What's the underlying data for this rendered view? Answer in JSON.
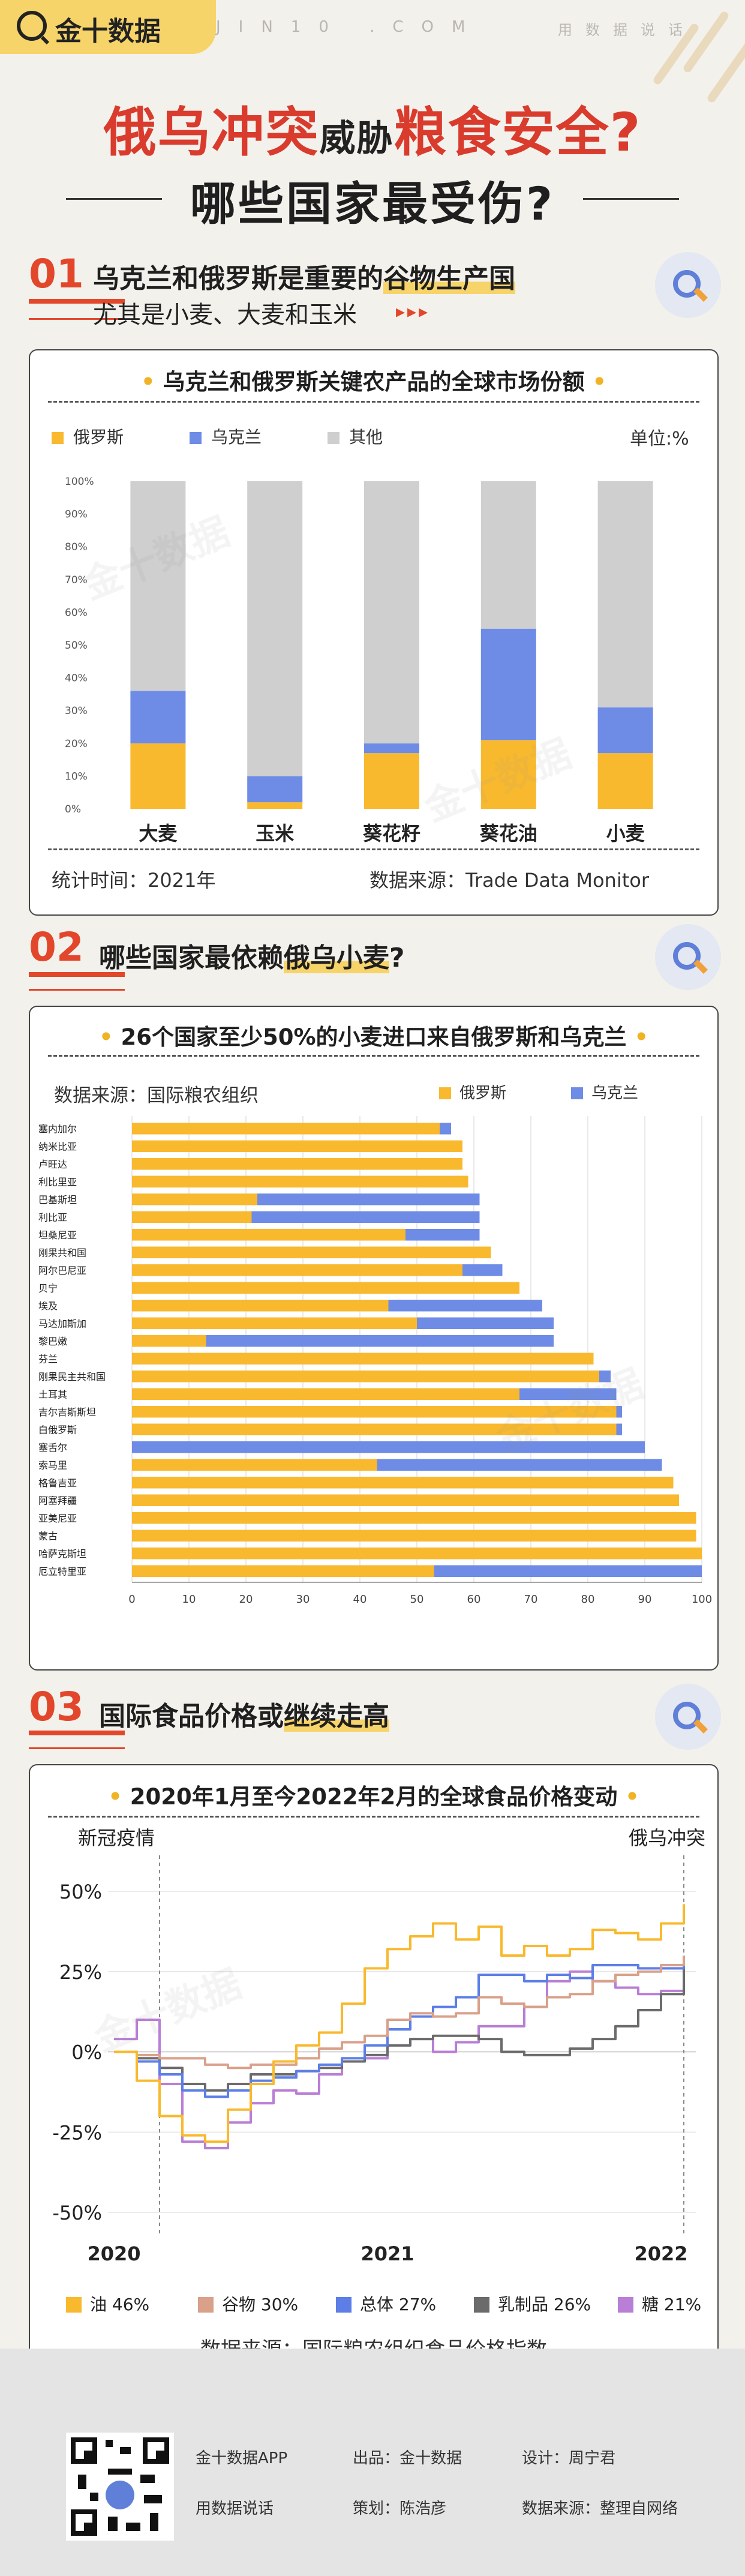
{
  "header": {
    "logo_text": "金十数据",
    "site": "JIN10 .COM",
    "slogan": "用数据说话"
  },
  "title": {
    "part1": "俄乌冲突",
    "part2": "威胁",
    "part3": "粮食安全?",
    "line2": "哪些国家最受伤?"
  },
  "section1": {
    "num": "01",
    "heading_pre": "乌克兰和俄罗斯是重要的",
    "heading_hl": "谷物生产国",
    "sub": "尤其是小麦、大麦和玉米",
    "arrows": "▸▸▸"
  },
  "section2": {
    "num": "02",
    "heading_pre": "哪些国家最依赖",
    "heading_hl": "俄乌小麦",
    "heading_post": "?"
  },
  "section3": {
    "num": "03",
    "heading_pre": "国际食品价格",
    "heading_mid": "或",
    "heading_hl": "继续走高"
  },
  "chart1": {
    "title": "乌克兰和俄罗斯关键农产品的全球市场份额",
    "unit": "单位:%",
    "time_note": "统计时间：2021年",
    "source": "数据来源：Trade Data Monitor"
  },
  "chart2": {
    "title": "26个国家至少50%的小麦进口来自俄罗斯和乌克兰",
    "source": "数据来源：国际粮农组织"
  },
  "chart3": {
    "title": "2020年1月至今2022年2月的全球食品价格变动",
    "annot_left": "新冠疫情",
    "annot_right": "俄乌冲突",
    "source": "数据来源：国际粮农组织食品价格指数"
  },
  "chart_data": [
    {
      "type": "bar",
      "stacked": true,
      "title": "乌克兰和俄罗斯关键农产品的全球市场份额",
      "categories": [
        "大麦",
        "玉米",
        "葵花籽",
        "葵花油",
        "小麦"
      ],
      "series": [
        {
          "name": "俄罗斯",
          "color": "#f9b92e",
          "values": [
            20,
            2,
            17,
            21,
            17
          ]
        },
        {
          "name": "乌克兰",
          "color": "#6e8ce6",
          "values": [
            16,
            8,
            3,
            34,
            14
          ]
        },
        {
          "name": "其他",
          "color": "#cfcfcf",
          "values": [
            64,
            90,
            80,
            45,
            69
          ]
        }
      ],
      "yticks": [
        "0%",
        "10%",
        "20%",
        "30%",
        "40%",
        "50%",
        "60%",
        "70%",
        "80%",
        "90%",
        "100%"
      ],
      "ylim": [
        0,
        100
      ],
      "legend_position": "top-left"
    },
    {
      "type": "bar",
      "orientation": "horizontal",
      "stacked": true,
      "title": "26个国家至少50%的小麦进口来自俄罗斯和乌克兰",
      "categories": [
        "塞内加尔",
        "纳米比亚",
        "卢旺达",
        "利比里亚",
        "巴基斯坦",
        "利比亚",
        "坦桑尼亚",
        "刚果共和国",
        "阿尔巴尼亚",
        "贝宁",
        "埃及",
        "马达加斯加",
        "黎巴嫩",
        "芬兰",
        "刚果民主共和国",
        "土耳其",
        "吉尔吉斯斯坦",
        "白俄罗斯",
        "塞舌尔",
        "索马里",
        "格鲁吉亚",
        "阿塞拜疆",
        "亚美尼亚",
        "蒙古",
        "哈萨克斯坦",
        "厄立特里亚"
      ],
      "series": [
        {
          "name": "俄罗斯",
          "color": "#f9b92e",
          "values": [
            54,
            58,
            58,
            59,
            22,
            21,
            48,
            63,
            58,
            68,
            45,
            50,
            13,
            81,
            82,
            68,
            85,
            85,
            0,
            43,
            95,
            96,
            99,
            99,
            100,
            53
          ]
        },
        {
          "name": "乌克兰",
          "color": "#6e8ce6",
          "values": [
            2,
            0,
            0,
            0,
            39,
            40,
            13,
            0,
            7,
            0,
            27,
            24,
            61,
            0,
            2,
            17,
            1,
            1,
            90,
            50,
            0,
            0,
            0,
            0,
            0,
            47
          ]
        }
      ],
      "xticks": [
        0,
        10,
        20,
        30,
        40,
        50,
        60,
        70,
        80,
        90,
        100
      ],
      "xlim": [
        0,
        100
      ],
      "legend_position": "top-right"
    },
    {
      "type": "line",
      "title": "2020年1月至今2022年2月的全球食品价格变动",
      "x": [
        "2020-01",
        "2020-02",
        "2020-03",
        "2020-04",
        "2020-05",
        "2020-06",
        "2020-07",
        "2020-08",
        "2020-09",
        "2020-10",
        "2020-11",
        "2020-12",
        "2021-01",
        "2021-02",
        "2021-03",
        "2021-04",
        "2021-05",
        "2021-06",
        "2021-07",
        "2021-08",
        "2021-09",
        "2021-10",
        "2021-11",
        "2021-12",
        "2022-01",
        "2022-02"
      ],
      "x_tick_labels": [
        "2020",
        "2021",
        "2022"
      ],
      "yticks": [
        "-50%",
        "-25%",
        "0%",
        "25%",
        "50%"
      ],
      "ylim": [
        -50,
        50
      ],
      "series": [
        {
          "name": "油",
          "label": "油 46%",
          "color": "#f9b92e",
          "values": [
            0,
            -9,
            -20,
            -26,
            -28,
            -18,
            -10,
            -3,
            2,
            6,
            15,
            26,
            32,
            36,
            40,
            35,
            39,
            30,
            33,
            30,
            32,
            38,
            37,
            35,
            40,
            46
          ]
        },
        {
          "name": "谷物",
          "label": "谷物 30%",
          "color": "#d9a08a",
          "values": [
            0,
            -1,
            -2,
            -2,
            -4,
            -5,
            -4,
            -4,
            -2,
            1,
            3,
            5,
            10,
            12,
            11,
            12,
            17,
            15,
            14,
            17,
            18,
            22,
            24,
            25,
            27,
            30
          ]
        },
        {
          "name": "总体",
          "label": "总体 27%",
          "color": "#5c7ee6",
          "values": [
            0,
            -3,
            -7,
            -12,
            -14,
            -12,
            -9,
            -8,
            -6,
            -4,
            -2,
            2,
            7,
            11,
            14,
            17,
            24,
            24,
            22,
            24,
            23,
            27,
            27,
            26,
            26,
            27
          ]
        },
        {
          "name": "乳制品",
          "label": "乳制品 26%",
          "color": "#6b6b6b",
          "values": [
            0,
            -2,
            -5,
            -10,
            -12,
            -10,
            -7,
            -7,
            -6,
            -5,
            -3,
            -1,
            2,
            4,
            5,
            5,
            4,
            0,
            -1,
            -1,
            1,
            4,
            8,
            13,
            18,
            26
          ]
        },
        {
          "name": "糖",
          "label": "糖 21%",
          "color": "#b97ed6",
          "values": [
            4,
            10,
            -10,
            -28,
            -30,
            -22,
            -16,
            -12,
            -13,
            -7,
            -3,
            -2,
            2,
            4,
            0,
            3,
            8,
            8,
            14,
            22,
            25,
            22,
            20,
            18,
            19,
            21
          ]
        }
      ],
      "legend_position": "bottom"
    }
  ],
  "footer": {
    "app": "金十数据APP",
    "slogan": "用数据说话",
    "publisher": "出品：金十数据",
    "planner": "策划：陈浩彦",
    "designer": "设计：周宁君",
    "source": "数据来源：整理自网络"
  }
}
